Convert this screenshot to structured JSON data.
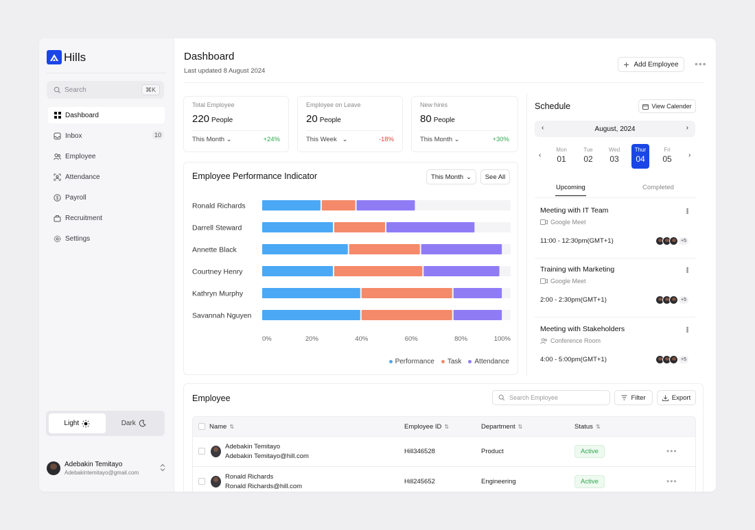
{
  "brand": {
    "name": "Hills",
    "accent": "#1a46e6"
  },
  "sidebar": {
    "search_placeholder": "Search",
    "search_shortcut": "⌘K",
    "items": [
      {
        "label": "Dashboard",
        "icon": "grid-icon",
        "active": true
      },
      {
        "label": "Inbox",
        "icon": "inbox-icon",
        "badge": "10"
      },
      {
        "label": "Employee",
        "icon": "users-icon"
      },
      {
        "label": "Attendance",
        "icon": "scan-face-icon"
      },
      {
        "label": "Payroll",
        "icon": "dollar-icon"
      },
      {
        "label": "Recruitment",
        "icon": "briefcase-icon"
      },
      {
        "label": "Settings",
        "icon": "gear-icon"
      }
    ],
    "theme": {
      "light": "Light",
      "dark": "Dark",
      "selected": "Light"
    },
    "user": {
      "name": "Adebakin Temitayo",
      "email": "Adebakintemitayo@gmail.com"
    }
  },
  "header": {
    "title": "Dashboard",
    "subtitle": "Last updated 8 August 2024",
    "add_button": "Add Employee"
  },
  "stats": [
    {
      "label": "Total Employee",
      "value": "220",
      "unit": "People",
      "period": "This Month",
      "change": "+24%",
      "trend": "up"
    },
    {
      "label": "Employee on Leave",
      "value": "20",
      "unit": "People",
      "period": "This Week",
      "change": "-18%",
      "trend": "down"
    },
    {
      "label": "New hires",
      "value": "80",
      "unit": "People",
      "period": "This Month",
      "change": "+30%",
      "trend": "up"
    }
  ],
  "performance": {
    "title": "Employee Performance Indicator",
    "period_button": "This Month",
    "see_all": "See All"
  },
  "chart_data": {
    "type": "bar",
    "orientation": "horizontal",
    "stacked": true,
    "categories": [
      "Ronald Richards",
      "Darrell Steward",
      "Annette Black",
      "Courtney Henry",
      "Kathryn Murphy",
      "Savannah Nguyen"
    ],
    "series": [
      {
        "name": "Performance",
        "color": "#4aa8f5",
        "values": [
          24,
          29,
          35,
          29,
          40,
          40
        ]
      },
      {
        "name": "Task",
        "color": "#f48a6a",
        "values": [
          14,
          21,
          29,
          36,
          37,
          37
        ]
      },
      {
        "name": "Attendance",
        "color": "#8f7cf5",
        "values": [
          24,
          36,
          33,
          31,
          20,
          20
        ]
      }
    ],
    "xlim": [
      0,
      100
    ],
    "xticks": [
      "0%",
      "20%",
      "40%",
      "60%",
      "80%",
      "100%"
    ],
    "legend": "bottom-right"
  },
  "schedule": {
    "title": "Schedule",
    "view_calendar": "View Calender",
    "month": "August, 2024",
    "days": [
      {
        "name": "Mon",
        "date": "01"
      },
      {
        "name": "Tue",
        "date": "02"
      },
      {
        "name": "Wed",
        "date": "03"
      },
      {
        "name": "Thur",
        "date": "04",
        "selected": true
      },
      {
        "name": "Fri",
        "date": "05"
      }
    ],
    "tabs": [
      "Upcoming",
      "Completed"
    ],
    "events": [
      {
        "title": "Meeting with IT Team",
        "location": "Google Meet",
        "location_icon": "video-icon",
        "time": "11:00 - 12:30pm(GMT+1)",
        "extra": "+5"
      },
      {
        "title": "Training with Marketing",
        "location": "Google Meet",
        "location_icon": "video-icon",
        "time": "2:00 - 2:30pm(GMT+1)",
        "extra": "+5"
      },
      {
        "title": "Meeting with Stakeholders",
        "location": "Conference Room",
        "location_icon": "users-icon",
        "time": "4:00 - 5:00pm(GMT+1)",
        "extra": "+5"
      }
    ]
  },
  "employees": {
    "title": "Employee",
    "search_placeholder": "Search Employee",
    "filter": "Filter",
    "export": "Export",
    "columns": [
      "Name",
      "Employee ID",
      "Department",
      "Status"
    ],
    "rows": [
      {
        "name": "Adebakin Temitayo",
        "email": "Adebakin Temitayo@hill.com",
        "id": "Hill346528",
        "department": "Product",
        "status": "Active"
      },
      {
        "name": "Ronald Richards",
        "email": "Ronald Richards@hill.com",
        "id": "Hill245652",
        "department": "Engineering",
        "status": "Active"
      }
    ]
  }
}
